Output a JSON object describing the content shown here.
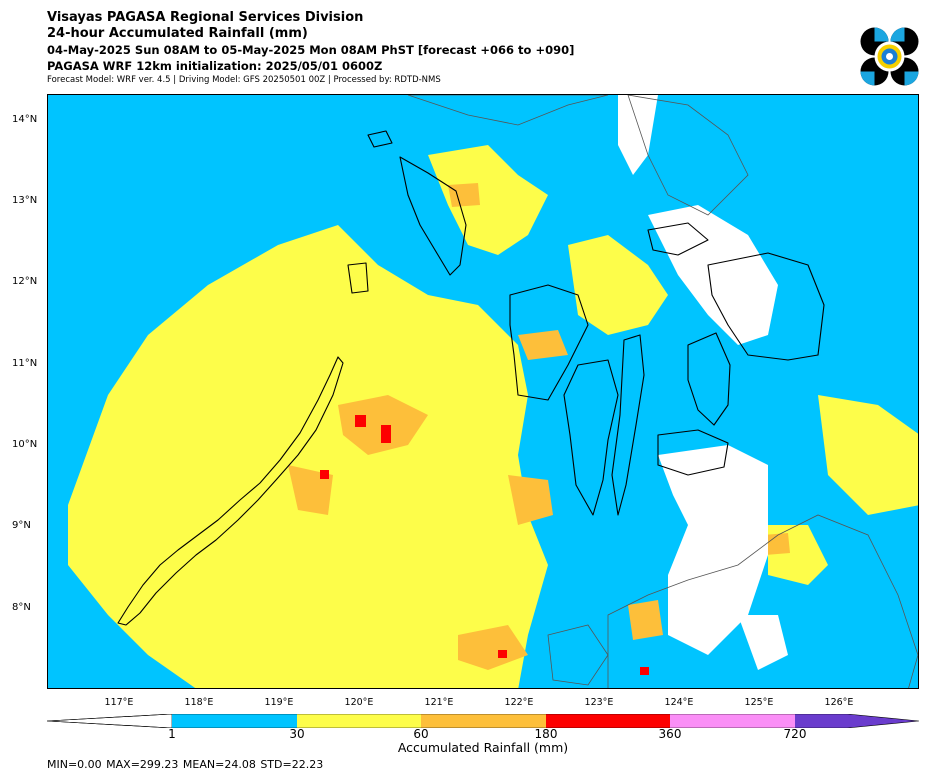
{
  "header": {
    "title": "Visayas PAGASA Regional Services Division",
    "subtitle": "24-hour Accumulated Rainfall (mm)",
    "period": "04-May-2025 Sun 08AM to 05-May-2025 Mon 08AM PhST [forecast +066 to +090]",
    "initialization": "PAGASA WRF 12km initialization: 2025/05/01 0600Z",
    "model_info": "Forecast Model: WRF ver. 4.5 | Driving Model: GFS 20250501 00Z | Processed by: RDTD-NMS"
  },
  "logo": {
    "icon": "pagasa-logo-icon"
  },
  "map": {
    "lat_labels": [
      "14°N",
      "13°N",
      "12°N",
      "11°N",
      "10°N",
      "9°N",
      "8°N"
    ],
    "lon_labels": [
      "117°E",
      "118°E",
      "119°E",
      "120°E",
      "121°E",
      "122°E",
      "123°E",
      "124°E",
      "125°E",
      "126°E"
    ],
    "colors": {
      "low": "#ffffff",
      "c1": "#00c4ff",
      "c30": "#fdfd4a",
      "c60": "#fdbf3a",
      "c180": "#fd0000",
      "c360": "#fa8ef6",
      "c720": "#6a3ccd"
    }
  },
  "colorbar": {
    "title": "Accumulated Rainfall (mm)",
    "ticks": [
      "1",
      "30",
      "60",
      "180",
      "360",
      "720"
    ],
    "colors": [
      "#ffffff",
      "#00c4ff",
      "#fdfd4a",
      "#fdbf3a",
      "#fd0000",
      "#fa8ef6",
      "#6a3ccd"
    ]
  },
  "stats": "MIN=0.00   MAX=299.23   MEAN=24.08   STD=22.23"
}
